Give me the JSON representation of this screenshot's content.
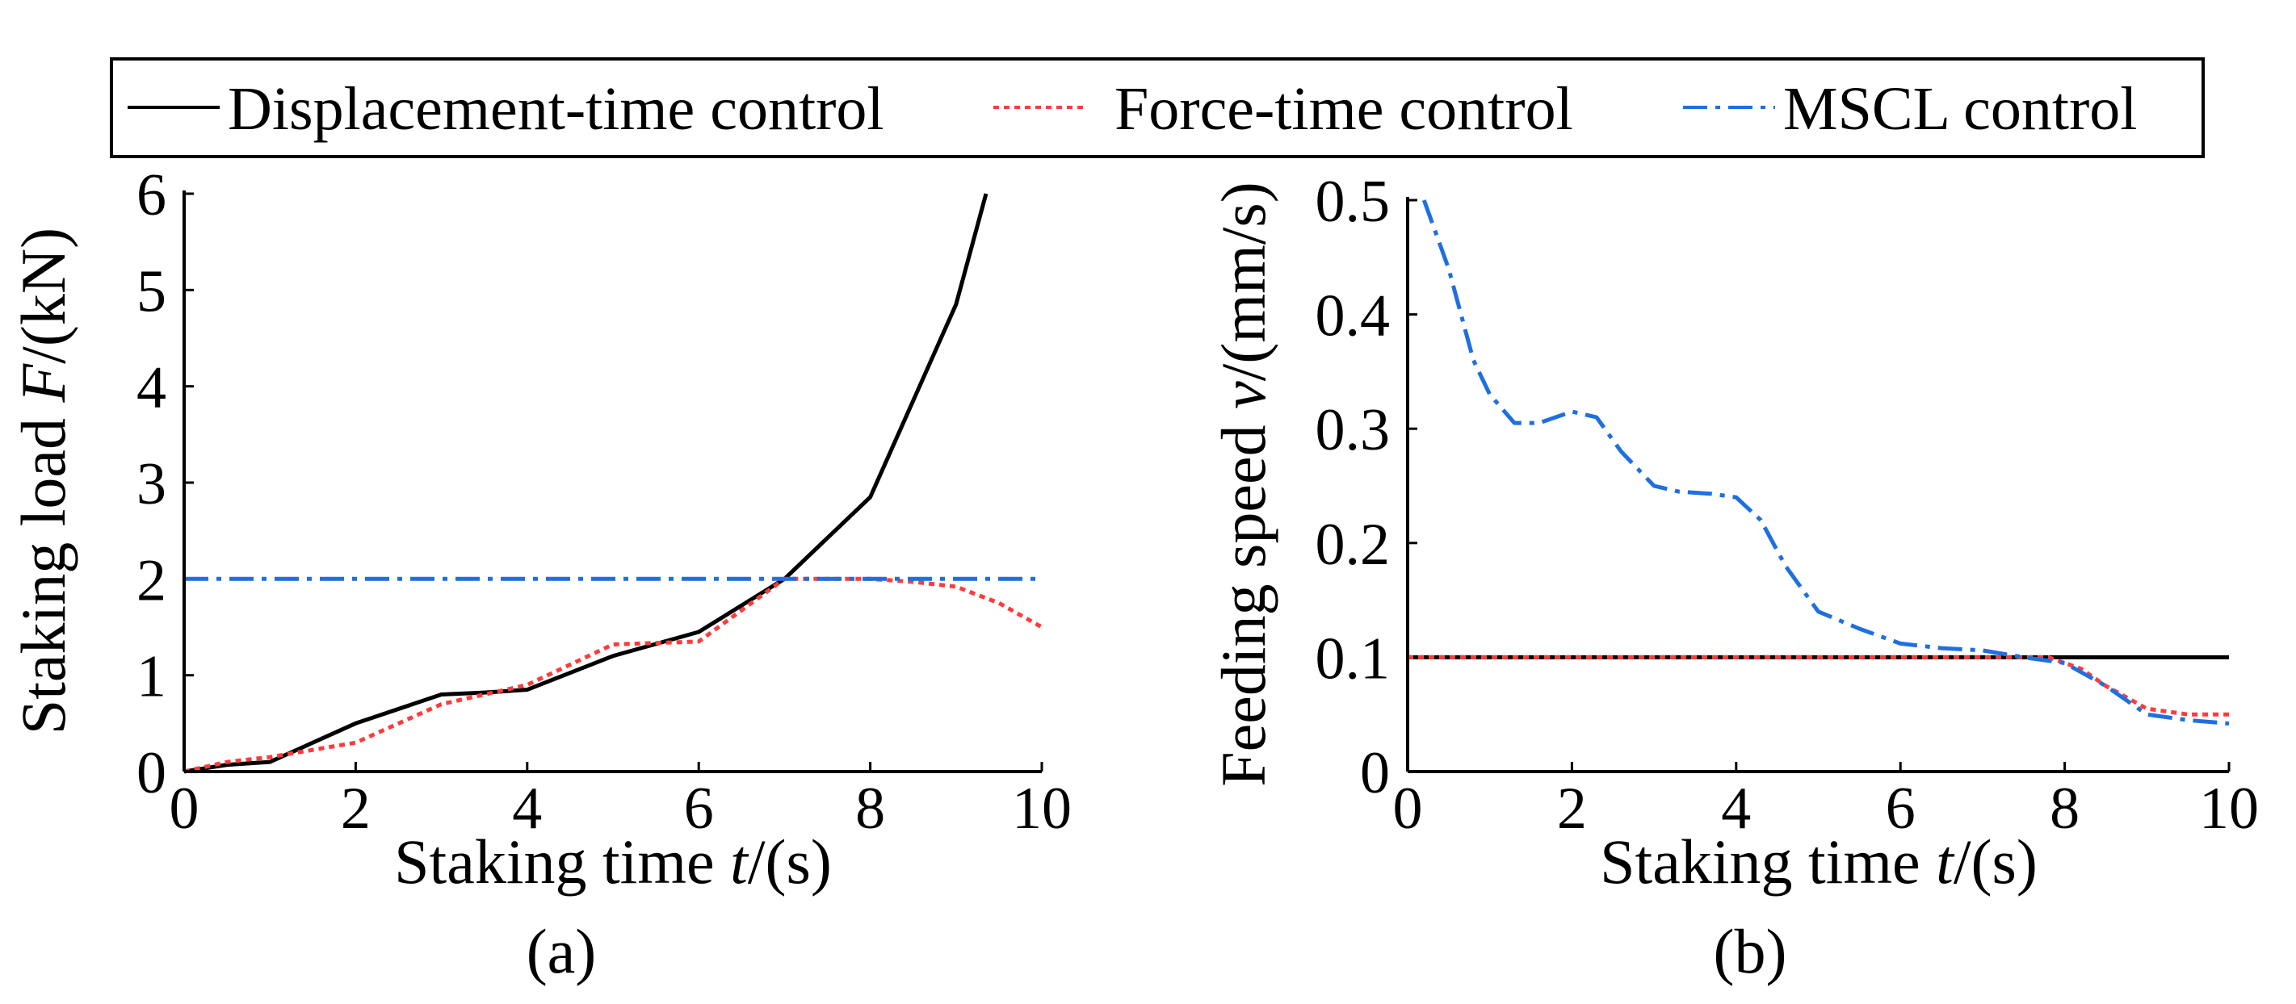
{
  "legend": {
    "entries": [
      {
        "label": "Displacement-time control",
        "color": "#000000",
        "dash": "solid"
      },
      {
        "label": "Force-time control",
        "color": "#ff3b3b",
        "dash": "dotted"
      },
      {
        "label": "MSCL control",
        "color": "#1f6fe0",
        "dash": "dashdot"
      }
    ]
  },
  "chart_data": [
    {
      "type": "line",
      "panel_label": "(a)",
      "xlabel_pre": "Staking time ",
      "xlabel_var": "t",
      "xlabel_post": "/(s)",
      "ylabel_pre": "Staking load ",
      "ylabel_var": "F",
      "ylabel_post": "/(kN)",
      "xlim": [
        0,
        10
      ],
      "ylim": [
        0,
        6
      ],
      "xticks": [
        0,
        2,
        4,
        6,
        8,
        10
      ],
      "yticks": [
        0,
        1,
        2,
        3,
        4,
        5,
        6
      ],
      "xtick_labels": [
        "0",
        "2",
        "4",
        "6",
        "8",
        "10"
      ],
      "ytick_labels": [
        "0",
        "1",
        "2",
        "3",
        "4",
        "5",
        "6"
      ],
      "series": [
        {
          "name": "Displacement-time control",
          "color": "#000000",
          "dash": "solid",
          "x": [
            0,
            0.5,
            1,
            2,
            3,
            3.5,
            4,
            5,
            6,
            7,
            8,
            9,
            9.35
          ],
          "y": [
            0,
            0.07,
            0.1,
            0.5,
            0.8,
            0.82,
            0.85,
            1.2,
            1.45,
            2.0,
            2.85,
            4.85,
            6.0
          ]
        },
        {
          "name": "Force-time control",
          "color": "#ff3b3b",
          "dash": "dotted",
          "x": [
            0,
            0.5,
            1,
            2,
            3,
            4,
            5,
            6,
            7,
            8,
            8.5,
            9,
            9.5,
            10
          ],
          "y": [
            0,
            0.1,
            0.15,
            0.3,
            0.7,
            0.9,
            1.32,
            1.35,
            2.0,
            2.0,
            1.97,
            1.92,
            1.75,
            1.5
          ]
        },
        {
          "name": "MSCL control",
          "color": "#1f6fe0",
          "dash": "dashdot",
          "x": [
            0,
            10
          ],
          "y": [
            2.0,
            2.0
          ]
        }
      ]
    },
    {
      "type": "line",
      "panel_label": "(b)",
      "xlabel_pre": "Staking time ",
      "xlabel_var": "t",
      "xlabel_post": "/(s)",
      "ylabel_pre": "Feeding speed ",
      "ylabel_var": "v",
      "ylabel_post": "/(mm/s)",
      "xlim": [
        0,
        10
      ],
      "ylim": [
        0,
        0.5
      ],
      "xticks": [
        0,
        2,
        4,
        6,
        8,
        10
      ],
      "yticks": [
        0,
        0.1,
        0.2,
        0.3,
        0.4,
        0.5
      ],
      "xtick_labels": [
        "0",
        "2",
        "4",
        "6",
        "8",
        "10"
      ],
      "ytick_labels": [
        "0",
        "0.1",
        "0.2",
        "0.3",
        "0.4",
        "0.5"
      ],
      "series": [
        {
          "name": "Displacement-time control",
          "color": "#000000",
          "dash": "solid",
          "x": [
            0,
            10
          ],
          "y": [
            0.1,
            0.1
          ]
        },
        {
          "name": "Force-time control",
          "color": "#ff3b3b",
          "dash": "dotted",
          "x": [
            0,
            7.8,
            8.2,
            8.5,
            9.0,
            9.5,
            10
          ],
          "y": [
            0.1,
            0.1,
            0.09,
            0.075,
            0.055,
            0.05,
            0.05
          ]
        },
        {
          "name": "MSCL control",
          "color": "#1f6fe0",
          "dash": "dashdot",
          "x": [
            0.2,
            0.5,
            0.8,
            1.0,
            1.3,
            1.6,
            2.0,
            2.3,
            2.6,
            3.0,
            3.3,
            3.7,
            4.0,
            4.3,
            4.6,
            5.0,
            5.5,
            6.0,
            6.5,
            7.0,
            7.5,
            8.0,
            8.5,
            9.0,
            9.5,
            10
          ],
          "y": [
            0.5,
            0.44,
            0.36,
            0.33,
            0.305,
            0.305,
            0.315,
            0.31,
            0.28,
            0.25,
            0.245,
            0.243,
            0.24,
            0.22,
            0.18,
            0.14,
            0.125,
            0.112,
            0.108,
            0.106,
            0.1,
            0.095,
            0.075,
            0.05,
            0.045,
            0.042
          ]
        }
      ]
    }
  ]
}
